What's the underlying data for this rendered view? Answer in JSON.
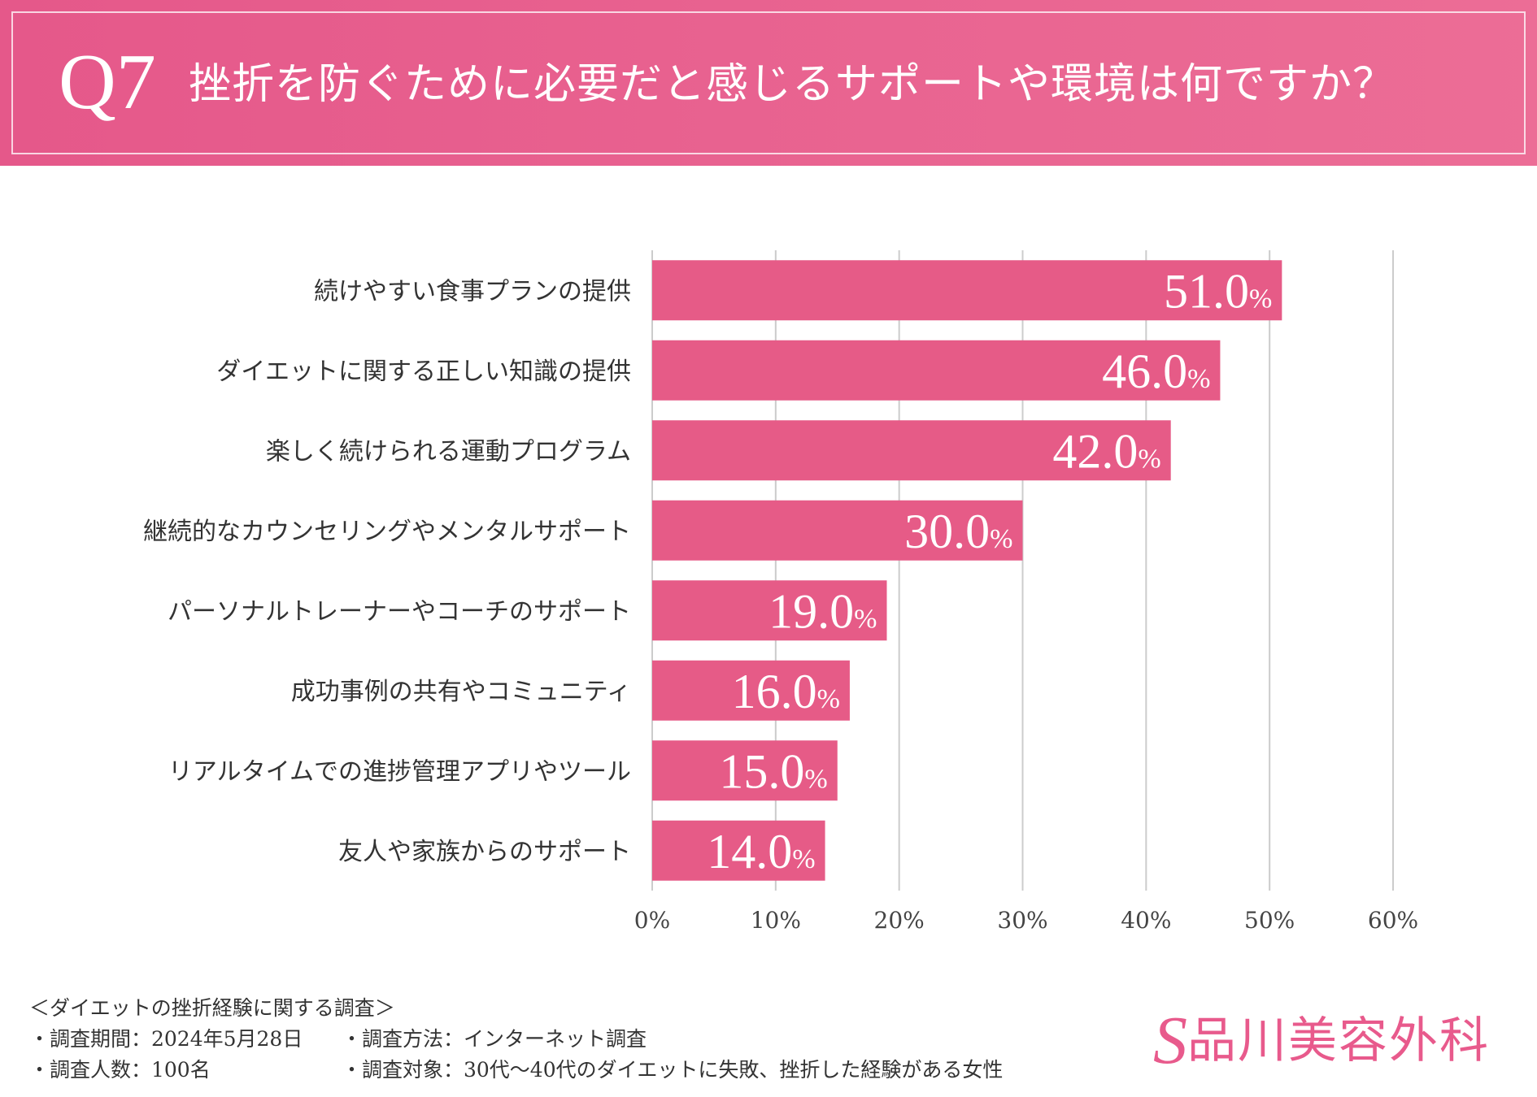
{
  "header": {
    "q_number": "Q7",
    "question": "挫折を防ぐために必要だと感じるサポートや環境は何ですか？"
  },
  "colors": {
    "bar": "#e65b87",
    "grid": "#cccccc",
    "header": "#e85c8b"
  },
  "chart_data": {
    "type": "bar",
    "orientation": "horizontal",
    "categories": [
      "続けやすい食事プランの提供",
      "ダイエットに関する正しい知識の提供",
      "楽しく続けられる運動プログラム",
      "継続的なカウンセリングやメンタルサポート",
      "パーソナルトレーナーやコーチのサポート",
      "成功事例の共有やコミュニティ",
      "リアルタイムでの進捗管理アプリやツール",
      "友人や家族からのサポート"
    ],
    "values": [
      51.0,
      46.0,
      42.0,
      30.0,
      19.0,
      16.0,
      15.0,
      14.0
    ],
    "value_labels": [
      "51.0",
      "46.0",
      "42.0",
      "30.0",
      "19.0",
      "16.0",
      "15.0",
      "14.0"
    ],
    "value_suffix": "%",
    "xlim": [
      0,
      60
    ],
    "xticks": [
      0,
      10,
      20,
      30,
      40,
      50,
      60
    ],
    "xtick_labels": [
      "0%",
      "10%",
      "20%",
      "30%",
      "40%",
      "50%",
      "60%"
    ],
    "grid": true
  },
  "footer": {
    "title": "＜ダイエットの挫折経験に関する調査＞",
    "period": "・調査期間：2024年5月28日",
    "method": "・調査方法：インターネット調査",
    "count": "・調査人数：100名",
    "target": "・調査対象：30代〜40代のダイエットに失敗、挫折した経験がある女性"
  },
  "logo": {
    "mark": "S",
    "text": "品川美容外科"
  }
}
